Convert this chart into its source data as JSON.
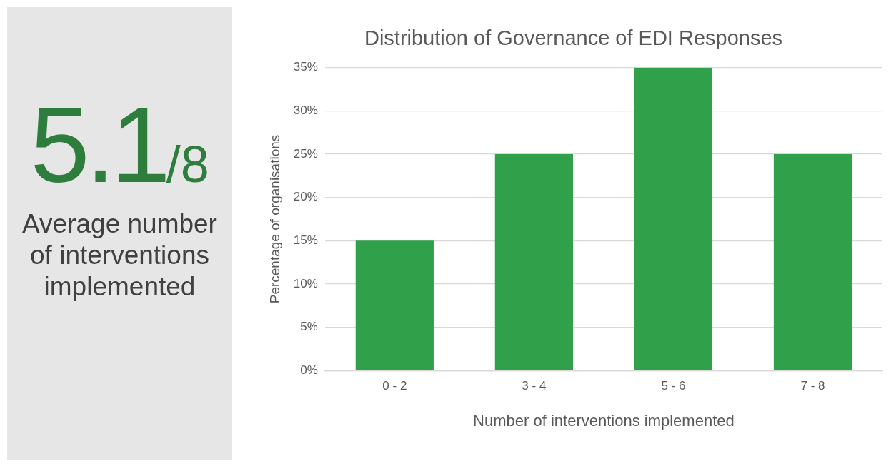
{
  "chart_data": [
    {
      "type": "other",
      "annotations": [
        "5.1",
        "/8",
        "Average number of interventions implemented"
      ]
    },
    {
      "type": "bar",
      "title": "Distribution of Governance of EDI Responses",
      "xlabel": "Number of interventions implemented",
      "ylabel": "Percentage of organisations",
      "categories": [
        "0 - 2",
        "3 - 4",
        "5 - 6",
        "7 - 8"
      ],
      "values": [
        15,
        25,
        35,
        25
      ],
      "color": "#31a04a",
      "ylim": [
        0,
        35
      ],
      "yticks": [
        {
          "value": 0,
          "label": "0%"
        },
        {
          "value": 5,
          "label": "5%"
        },
        {
          "value": 10,
          "label": "10%"
        },
        {
          "value": 15,
          "label": "15%"
        },
        {
          "value": 20,
          "label": "20%"
        },
        {
          "value": 25,
          "label": "25%"
        },
        {
          "value": 30,
          "label": "30%"
        },
        {
          "value": 35,
          "label": "35%"
        }
      ],
      "grid": "y",
      "legend": false
    }
  ]
}
